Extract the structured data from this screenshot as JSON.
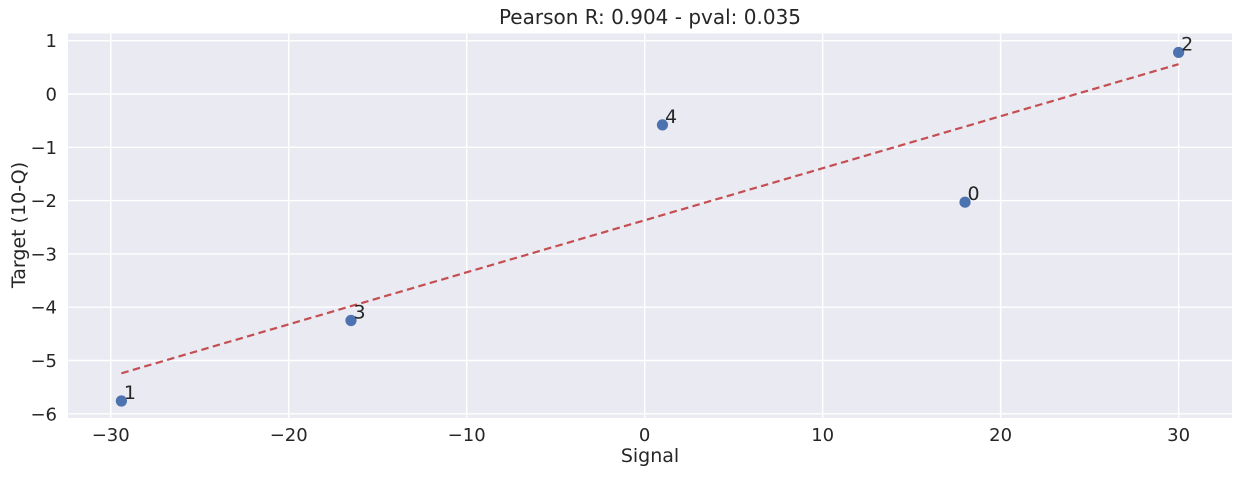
{
  "chart_data": {
    "type": "scatter",
    "title": "Pearson R: 0.904 - pval: 0.035",
    "xlabel": "Signal",
    "ylabel": "Target (10-Q)",
    "stats": {
      "pearson_r": 0.904,
      "pval": 0.035
    },
    "points": [
      {
        "label": "0",
        "x": 18.0,
        "y": -2.03
      },
      {
        "label": "1",
        "x": -29.4,
        "y": -5.76
      },
      {
        "label": "2",
        "x": 30.0,
        "y": 0.78
      },
      {
        "label": "3",
        "x": -16.5,
        "y": -4.25
      },
      {
        "label": "4",
        "x": 1.0,
        "y": -0.58
      }
    ],
    "regression_line": {
      "style": "dashed",
      "x": [
        -29.4,
        30.0
      ],
      "y": [
        -5.24,
        0.56
      ]
    },
    "x_ticks": [
      -30,
      -20,
      -10,
      0,
      10,
      20,
      30
    ],
    "y_ticks": [
      1,
      0,
      -1,
      -2,
      -3,
      -4,
      -5,
      -6
    ],
    "xlim": [
      -32.4,
      33.0
    ],
    "ylim": [
      -6.079,
      1.135
    ],
    "grid": true,
    "legend_position": "none",
    "colors": {
      "point": "#4C72B0",
      "regression_line": "#C44E52",
      "plot_background": "#EAEAF2",
      "gridline": "#FFFFFF",
      "text": "#262626",
      "figure_background": "#FFFFFF"
    }
  }
}
